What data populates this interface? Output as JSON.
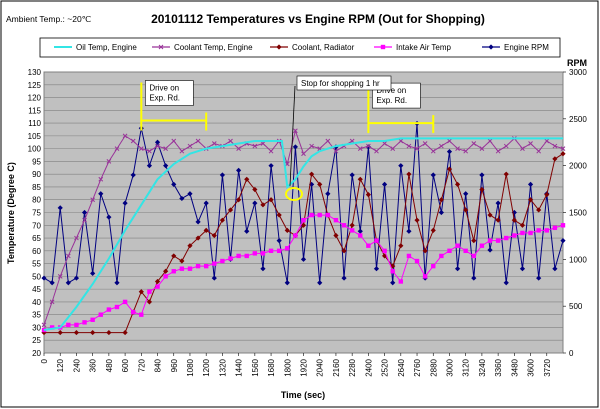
{
  "ambient": "Ambient Temp.: ~20℃",
  "chart_data": {
    "type": "line",
    "title": "20101112 Temperatures vs Engine RPM (Out for Shopping)",
    "xlabel": "Time (sec)",
    "ylabel": "Temperature (Degree C)",
    "y2label": "RPM",
    "xlim": [
      0,
      3840
    ],
    "ylim": [
      20,
      130
    ],
    "y2lim": [
      0,
      3000
    ],
    "grid": true,
    "legend_position": "top",
    "x_ticks": [
      "0",
      "120",
      "240",
      "360",
      "480",
      "600",
      "720",
      "840",
      "960",
      "1080",
      "1200",
      "1320",
      "1440",
      "1560",
      "1680",
      "1800",
      "1920",
      "2040",
      "2160",
      "2280",
      "2400",
      "2520",
      "2640",
      "2760",
      "2880",
      "3000",
      "3120",
      "3240",
      "3360",
      "3480",
      "3600",
      "3720"
    ],
    "y_ticks": [
      "20",
      "25",
      "30",
      "35",
      "40",
      "45",
      "50",
      "55",
      "60",
      "65",
      "70",
      "75",
      "80",
      "85",
      "90",
      "95",
      "100",
      "105",
      "110",
      "115",
      "120",
      "125",
      "130"
    ],
    "y2_ticks": [
      "0",
      "500",
      "1000",
      "1500",
      "2000",
      "2500",
      "3000"
    ],
    "series": [
      {
        "name": "Oil Temp, Engine",
        "axis": "left",
        "color": "#33e5e5",
        "marker": "none",
        "x": [
          0,
          120,
          240,
          360,
          480,
          600,
          720,
          840,
          960,
          1080,
          1200,
          1320,
          1440,
          1560,
          1680,
          1760,
          1800,
          1860,
          1920,
          1980,
          2040,
          2160,
          2280,
          2400,
          2520,
          2640,
          2760,
          2880,
          3000,
          3120,
          3240,
          3360,
          3480,
          3600,
          3720,
          3840
        ],
        "y": [
          29,
          30,
          38,
          47,
          57,
          68,
          78,
          88,
          94,
          98,
          100,
          101,
          102,
          103,
          103,
          103,
          85,
          88,
          93,
          97,
          99,
          101,
          102,
          103,
          103,
          104,
          104,
          104,
          104,
          104,
          104,
          104,
          104,
          104,
          104,
          104
        ]
      },
      {
        "name": "Coolant Temp, Engine",
        "axis": "left",
        "color": "#993399",
        "marker": "x",
        "x": [
          0,
          60,
          120,
          180,
          240,
          300,
          360,
          420,
          480,
          540,
          600,
          660,
          720,
          780,
          840,
          900,
          960,
          1020,
          1080,
          1140,
          1200,
          1260,
          1320,
          1380,
          1440,
          1500,
          1560,
          1620,
          1680,
          1740,
          1800,
          1860,
          1920,
          1980,
          2040,
          2100,
          2160,
          2220,
          2280,
          2340,
          2400,
          2460,
          2520,
          2580,
          2640,
          2700,
          2760,
          2820,
          2880,
          2940,
          3000,
          3060,
          3120,
          3180,
          3240,
          3300,
          3360,
          3420,
          3480,
          3540,
          3600,
          3660,
          3720,
          3780,
          3840
        ],
        "y": [
          31,
          40,
          50,
          58,
          65,
          72,
          80,
          88,
          95,
          100,
          105,
          103,
          100,
          99,
          101,
          100,
          103,
          99,
          101,
          103,
          100,
          102,
          101,
          103,
          100,
          102,
          101,
          102,
          99,
          103,
          94,
          107,
          98,
          101,
          100,
          103,
          99,
          101,
          103,
          100,
          101,
          99,
          102,
          100,
          103,
          101,
          100,
          102,
          99,
          101,
          103,
          100,
          99,
          102,
          100,
          103,
          99,
          101,
          104,
          100,
          102,
          99,
          103,
          101,
          100
        ]
      },
      {
        "name": "Coolant, Radiator",
        "axis": "left",
        "color": "#800000",
        "marker": "diamond",
        "x": [
          0,
          120,
          240,
          360,
          480,
          600,
          660,
          720,
          780,
          840,
          900,
          960,
          1020,
          1080,
          1140,
          1200,
          1260,
          1320,
          1380,
          1440,
          1500,
          1560,
          1620,
          1680,
          1740,
          1800,
          1860,
          1920,
          1980,
          2040,
          2100,
          2160,
          2220,
          2280,
          2340,
          2400,
          2460,
          2520,
          2580,
          2640,
          2700,
          2760,
          2820,
          2880,
          2940,
          3000,
          3060,
          3120,
          3180,
          3240,
          3300,
          3360,
          3420,
          3480,
          3540,
          3600,
          3660,
          3720,
          3780,
          3840
        ],
        "y": [
          28,
          28,
          28,
          28,
          28,
          28,
          36,
          44,
          40,
          48,
          52,
          58,
          56,
          62,
          65,
          68,
          66,
          72,
          76,
          80,
          88,
          84,
          78,
          80,
          74,
          68,
          66,
          70,
          90,
          86,
          74,
          66,
          60,
          70,
          88,
          82,
          64,
          58,
          54,
          62,
          90,
          72,
          60,
          68,
          80,
          92,
          86,
          76,
          64,
          84,
          74,
          72,
          90,
          72,
          70,
          80,
          76,
          82,
          96,
          98
        ]
      },
      {
        "name": "Intake Air Temp",
        "axis": "left",
        "color": "#ff00ff",
        "marker": "square",
        "x": [
          0,
          60,
          120,
          180,
          240,
          300,
          360,
          420,
          480,
          540,
          600,
          660,
          720,
          780,
          840,
          900,
          960,
          1020,
          1080,
          1140,
          1200,
          1260,
          1320,
          1380,
          1440,
          1500,
          1560,
          1620,
          1680,
          1740,
          1800,
          1860,
          1920,
          1980,
          2040,
          2100,
          2160,
          2220,
          2280,
          2340,
          2400,
          2460,
          2520,
          2580,
          2640,
          2700,
          2760,
          2820,
          2880,
          2940,
          3000,
          3060,
          3120,
          3180,
          3240,
          3300,
          3360,
          3420,
          3480,
          3540,
          3600,
          3660,
          3720,
          3780,
          3840
        ],
        "y": [
          29,
          30,
          30,
          31,
          31,
          32,
          33,
          35,
          37,
          38,
          40,
          36,
          35,
          44,
          46,
          50,
          52,
          53,
          53,
          54,
          54,
          55,
          56,
          57,
          58,
          58,
          59,
          59,
          60,
          60,
          61,
          66,
          72,
          74,
          74,
          74,
          72,
          70,
          68,
          66,
          62,
          64,
          60,
          52,
          48,
          58,
          56,
          50,
          54,
          58,
          60,
          62,
          60,
          58,
          62,
          64,
          64,
          65,
          66,
          67,
          67,
          68,
          68,
          69,
          70
        ]
      },
      {
        "name": "Engine RPM",
        "axis": "right",
        "color": "#000080",
        "marker": "diamond",
        "x": [
          0,
          60,
          120,
          180,
          240,
          300,
          360,
          420,
          480,
          540,
          600,
          660,
          720,
          780,
          840,
          900,
          960,
          1020,
          1080,
          1140,
          1200,
          1260,
          1320,
          1380,
          1440,
          1500,
          1560,
          1620,
          1680,
          1740,
          1800,
          1860,
          1920,
          1980,
          2040,
          2100,
          2160,
          2220,
          2280,
          2340,
          2400,
          2460,
          2520,
          2580,
          2640,
          2700,
          2760,
          2820,
          2880,
          2940,
          3000,
          3060,
          3120,
          3180,
          3240,
          3300,
          3360,
          3420,
          3480,
          3540,
          3600,
          3660,
          3720,
          3780,
          3840
        ],
        "y": [
          800,
          750,
          1550,
          750,
          800,
          1500,
          850,
          1700,
          1450,
          750,
          1600,
          1900,
          2400,
          2000,
          2250,
          2000,
          1800,
          1650,
          1700,
          1400,
          1600,
          800,
          1900,
          1000,
          1950,
          1300,
          1600,
          900,
          2000,
          1200,
          750,
          2200,
          1000,
          1800,
          750,
          1700,
          2200,
          800,
          1900,
          1300,
          2200,
          900,
          1800,
          750,
          2000,
          1300,
          2450,
          800,
          1900,
          1500,
          2150,
          900,
          1700,
          800,
          1900,
          1100,
          1600,
          750,
          1500,
          900,
          1800,
          800,
          1700,
          900,
          1200
        ]
      }
    ],
    "annotations": [
      {
        "text": [
          "Drive on",
          "Exp. Rd."
        ],
        "x_range": [
          720,
          1200
        ],
        "y": 111,
        "color": "#ffff00"
      },
      {
        "text": [
          "Drive on",
          "Exp. Rd."
        ],
        "x_range": [
          2400,
          2880
        ],
        "y": 110,
        "color": "#ffff00"
      },
      {
        "text": [
          "Stop for shopping 1 hr"
        ]
      }
    ]
  }
}
